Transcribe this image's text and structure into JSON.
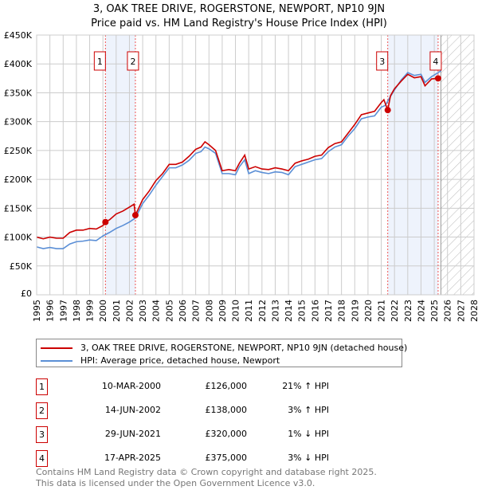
{
  "chart_data": {
    "type": "line",
    "title": "3, OAK TREE DRIVE, ROGERSTONE, NEWPORT, NP10 9JN",
    "subtitle": "Price paid vs. HM Land Registry's House Price Index (HPI)",
    "xlim": [
      1995,
      2028
    ],
    "ylim": [
      0,
      450000
    ],
    "x_ticks": [
      "1995",
      "1996",
      "1997",
      "1998",
      "1999",
      "2000",
      "2001",
      "2002",
      "2003",
      "2004",
      "2005",
      "2006",
      "2007",
      "2008",
      "2009",
      "2010",
      "2011",
      "2012",
      "2013",
      "2014",
      "2015",
      "2016",
      "2017",
      "2018",
      "2019",
      "2020",
      "2021",
      "2022",
      "2023",
      "2024",
      "2025",
      "2026",
      "2027",
      "2028"
    ],
    "y_ticks": [
      {
        "v": 0,
        "label": "£0"
      },
      {
        "v": 50000,
        "label": "£50K"
      },
      {
        "v": 100000,
        "label": "£100K"
      },
      {
        "v": 150000,
        "label": "£150K"
      },
      {
        "v": 200000,
        "label": "£200K"
      },
      {
        "v": 250000,
        "label": "£250K"
      },
      {
        "v": 300000,
        "label": "£300K"
      },
      {
        "v": 350000,
        "label": "£350K"
      },
      {
        "v": 400000,
        "label": "£400K"
      },
      {
        "v": 450000,
        "label": "£450K"
      }
    ],
    "grid": true,
    "forecast_hatch_from": 2025.5,
    "shaded_ranges": [
      [
        2000.19,
        2002.45
      ],
      [
        2021.49,
        2025.29
      ]
    ],
    "series": [
      {
        "name": "3, OAK TREE DRIVE, ROGERSTONE, NEWPORT, NP10 9JN (detached house)",
        "color": "#cc0000",
        "points": [
          [
            1995,
            100
          ],
          [
            1995.5,
            97
          ],
          [
            1996,
            100
          ],
          [
            1996.5,
            98
          ],
          [
            1997,
            98
          ],
          [
            1997.5,
            108
          ],
          [
            1998,
            112
          ],
          [
            1998.5,
            112
          ],
          [
            1999,
            115
          ],
          [
            1999.5,
            114
          ],
          [
            2000,
            120
          ],
          [
            2000.19,
            126
          ],
          [
            2000.5,
            130
          ],
          [
            2001,
            140
          ],
          [
            2001.5,
            145
          ],
          [
            2002,
            152
          ],
          [
            2002.35,
            157
          ],
          [
            2002.45,
            138
          ],
          [
            2003,
            165
          ],
          [
            2003.5,
            180
          ],
          [
            2004,
            198
          ],
          [
            2004.5,
            210
          ],
          [
            2005,
            226
          ],
          [
            2005.5,
            226
          ],
          [
            2006,
            230
          ],
          [
            2006.5,
            240
          ],
          [
            2007,
            252
          ],
          [
            2007.4,
            256
          ],
          [
            2007.7,
            265
          ],
          [
            2008,
            260
          ],
          [
            2008.5,
            250
          ],
          [
            2009,
            215
          ],
          [
            2009.5,
            217
          ],
          [
            2010,
            215
          ],
          [
            2010.3,
            228
          ],
          [
            2010.7,
            242
          ],
          [
            2011,
            218
          ],
          [
            2011.5,
            222
          ],
          [
            2012,
            218
          ],
          [
            2012.5,
            217
          ],
          [
            2013,
            220
          ],
          [
            2013.5,
            218
          ],
          [
            2014,
            215
          ],
          [
            2014.5,
            228
          ],
          [
            2015,
            232
          ],
          [
            2015.5,
            235
          ],
          [
            2016,
            240
          ],
          [
            2016.5,
            242
          ],
          [
            2017,
            255
          ],
          [
            2017.5,
            262
          ],
          [
            2018,
            265
          ],
          [
            2018.5,
            280
          ],
          [
            2019,
            295
          ],
          [
            2019.5,
            312
          ],
          [
            2020,
            315
          ],
          [
            2020.5,
            318
          ],
          [
            2021,
            333
          ],
          [
            2021.2,
            338
          ],
          [
            2021.49,
            320
          ],
          [
            2021.7,
            345
          ],
          [
            2022,
            357
          ],
          [
            2022.5,
            370
          ],
          [
            2023,
            382
          ],
          [
            2023.5,
            376
          ],
          [
            2024,
            378
          ],
          [
            2024.3,
            362
          ],
          [
            2024.8,
            374
          ],
          [
            2025.29,
            375
          ]
        ]
      },
      {
        "name": "HPI: Average price, detached house, Newport",
        "color": "#5b8fd6",
        "points": [
          [
            1995,
            83
          ],
          [
            1995.5,
            80
          ],
          [
            1996,
            82
          ],
          [
            1996.5,
            80
          ],
          [
            1997,
            80
          ],
          [
            1997.5,
            88
          ],
          [
            1998,
            92
          ],
          [
            1998.5,
            93
          ],
          [
            1999,
            95
          ],
          [
            1999.5,
            94
          ],
          [
            2000,
            102
          ],
          [
            2000.5,
            108
          ],
          [
            2001,
            115
          ],
          [
            2001.5,
            120
          ],
          [
            2002,
            126
          ],
          [
            2002.45,
            133
          ],
          [
            2003,
            158
          ],
          [
            2003.5,
            173
          ],
          [
            2004,
            190
          ],
          [
            2004.5,
            205
          ],
          [
            2005,
            220
          ],
          [
            2005.5,
            220
          ],
          [
            2006,
            225
          ],
          [
            2006.5,
            233
          ],
          [
            2007,
            245
          ],
          [
            2007.4,
            248
          ],
          [
            2007.7,
            256
          ],
          [
            2008,
            253
          ],
          [
            2008.5,
            245
          ],
          [
            2009,
            210
          ],
          [
            2009.5,
            210
          ],
          [
            2010,
            208
          ],
          [
            2010.3,
            222
          ],
          [
            2010.7,
            234
          ],
          [
            2011,
            210
          ],
          [
            2011.5,
            215
          ],
          [
            2012,
            212
          ],
          [
            2012.5,
            210
          ],
          [
            2013,
            213
          ],
          [
            2013.5,
            212
          ],
          [
            2014,
            208
          ],
          [
            2014.5,
            222
          ],
          [
            2015,
            226
          ],
          [
            2015.5,
            230
          ],
          [
            2016,
            234
          ],
          [
            2016.5,
            236
          ],
          [
            2017,
            248
          ],
          [
            2017.5,
            256
          ],
          [
            2018,
            260
          ],
          [
            2018.5,
            275
          ],
          [
            2019,
            288
          ],
          [
            2019.5,
            305
          ],
          [
            2020,
            308
          ],
          [
            2020.5,
            310
          ],
          [
            2021,
            325
          ],
          [
            2021.3,
            328
          ],
          [
            2021.6,
            340
          ],
          [
            2022,
            355
          ],
          [
            2022.5,
            372
          ],
          [
            2023,
            385
          ],
          [
            2023.5,
            380
          ],
          [
            2024,
            382
          ],
          [
            2024.3,
            368
          ],
          [
            2024.8,
            378
          ],
          [
            2025.3,
            385
          ],
          [
            2025.5,
            388
          ]
        ]
      }
    ],
    "sales": [
      {
        "id": "1",
        "date": "10-MAR-2000",
        "x": 2000.19,
        "price": 126000,
        "price_label": "£126,000",
        "hpi": "21% ↑ HPI"
      },
      {
        "id": "2",
        "date": "14-JUN-2002",
        "x": 2002.45,
        "price": 138000,
        "price_label": "£138,000",
        "hpi": "3% ↑ HPI"
      },
      {
        "id": "3",
        "date": "29-JUN-2021",
        "x": 2021.49,
        "price": 320000,
        "price_label": "£320,000",
        "hpi": "1% ↓ HPI"
      },
      {
        "id": "4",
        "date": "17-APR-2025",
        "x": 2025.29,
        "price": 375000,
        "price_label": "£375,000",
        "hpi": "3% ↓ HPI"
      }
    ]
  },
  "footer": {
    "line1": "Contains HM Land Registry data © Crown copyright and database right 2025.",
    "line2": "This data is licensed under the Open Government Licence v3.0."
  }
}
